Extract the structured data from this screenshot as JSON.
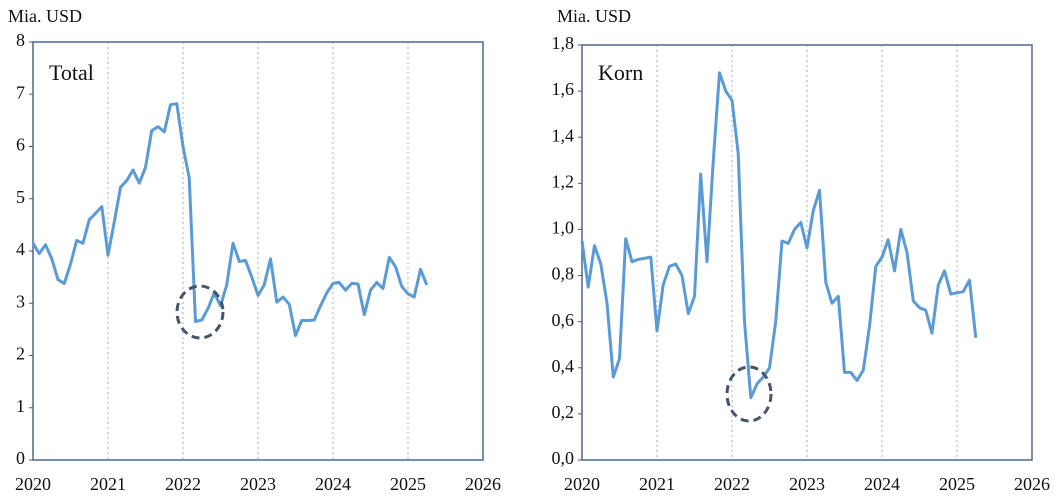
{
  "chart_data": [
    {
      "type": "line",
      "ylabel": "Mia. USD",
      "x": [
        2020,
        2020.083,
        2020.167,
        2020.25,
        2020.333,
        2020.417,
        2020.5,
        2020.583,
        2020.667,
        2020.75,
        2020.833,
        2020.917,
        2021,
        2021.083,
        2021.167,
        2021.25,
        2021.333,
        2021.417,
        2021.5,
        2021.583,
        2021.667,
        2021.75,
        2021.833,
        2021.917,
        2022,
        2022.083,
        2022.167,
        2022.25,
        2022.333,
        2022.417,
        2022.5,
        2022.583,
        2022.667,
        2022.75,
        2022.833,
        2022.917,
        2023,
        2023.083,
        2023.167,
        2023.25,
        2023.333,
        2023.417,
        2023.5,
        2023.583,
        2023.667,
        2023.75,
        2023.833,
        2023.917,
        2024,
        2024.083,
        2024.167,
        2024.25,
        2024.333,
        2024.417,
        2024.5,
        2024.583,
        2024.667,
        2024.75,
        2024.833,
        2024.917,
        2025,
        2025.083,
        2025.167,
        2025.25
      ],
      "series": [
        {
          "name": "Total",
          "color": "#5b9bd5",
          "values": [
            4.15,
            3.95,
            4.12,
            3.85,
            3.45,
            3.38,
            3.75,
            4.2,
            4.15,
            4.6,
            4.72,
            4.85,
            3.92,
            4.55,
            5.22,
            5.35,
            5.55,
            5.3,
            5.6,
            6.3,
            6.38,
            6.28,
            6.8,
            6.82,
            6.0,
            5.4,
            2.65,
            2.68,
            2.9,
            3.2,
            2.95,
            3.35,
            4.15,
            3.8,
            3.82,
            3.5,
            3.15,
            3.35,
            3.85,
            3.02,
            3.12,
            2.98,
            2.38,
            2.67,
            2.67,
            2.68,
            2.95,
            3.2,
            3.38,
            3.4,
            3.25,
            3.38,
            3.37,
            2.78,
            3.25,
            3.4,
            3.28,
            3.88,
            3.7,
            3.32,
            3.18,
            3.12,
            3.65,
            3.35
          ]
        }
      ],
      "xlim": [
        2020,
        2026
      ],
      "xticks": [
        2020,
        2021,
        2022,
        2023,
        2024,
        2025,
        2026
      ],
      "ylim": [
        0,
        8
      ],
      "yticks": [
        0,
        1,
        2,
        3,
        4,
        5,
        6,
        7,
        8
      ],
      "grid": true
    },
    {
      "type": "line",
      "ylabel": "Mia. USD",
      "x": [
        2020,
        2020.083,
        2020.167,
        2020.25,
        2020.333,
        2020.417,
        2020.5,
        2020.583,
        2020.667,
        2020.75,
        2020.833,
        2020.917,
        2021,
        2021.083,
        2021.167,
        2021.25,
        2021.333,
        2021.417,
        2021.5,
        2021.583,
        2021.667,
        2021.75,
        2021.833,
        2021.917,
        2022,
        2022.083,
        2022.167,
        2022.25,
        2022.333,
        2022.417,
        2022.5,
        2022.583,
        2022.667,
        2022.75,
        2022.833,
        2022.917,
        2023,
        2023.083,
        2023.167,
        2023.25,
        2023.333,
        2023.417,
        2023.5,
        2023.583,
        2023.667,
        2023.75,
        2023.833,
        2023.917,
        2024,
        2024.083,
        2024.167,
        2024.25,
        2024.333,
        2024.417,
        2024.5,
        2024.583,
        2024.667,
        2024.75,
        2024.833,
        2024.917,
        2025,
        2025.083,
        2025.167,
        2025.25
      ],
      "series": [
        {
          "name": "Korn",
          "color": "#5b9bd5",
          "values": [
            0.95,
            0.75,
            0.93,
            0.85,
            0.68,
            0.36,
            0.44,
            0.96,
            0.86,
            0.87,
            0.875,
            0.88,
            0.56,
            0.76,
            0.84,
            0.85,
            0.8,
            0.635,
            0.71,
            1.24,
            0.86,
            1.3,
            1.68,
            1.6,
            1.56,
            1.33,
            0.6,
            0.27,
            0.33,
            0.36,
            0.4,
            0.6,
            0.95,
            0.94,
            1.0,
            1.03,
            0.92,
            1.08,
            1.17,
            0.77,
            0.68,
            0.71,
            0.38,
            0.38,
            0.345,
            0.39,
            0.58,
            0.84,
            0.88,
            0.955,
            0.82,
            1.0,
            0.9,
            0.69,
            0.66,
            0.65,
            0.55,
            0.76,
            0.82,
            0.72,
            0.725,
            0.73,
            0.78,
            0.53
          ]
        }
      ],
      "xlim": [
        2020,
        2026
      ],
      "xticks": [
        2020,
        2021,
        2022,
        2023,
        2024,
        2025,
        2026
      ],
      "ylim": [
        0,
        1.8
      ],
      "yticks": [
        {
          "value": 0,
          "label": "0,0"
        },
        {
          "value": 0.2,
          "label": "0,2"
        },
        {
          "value": 0.4,
          "label": "0,4"
        },
        {
          "value": 0.6,
          "label": "0,6"
        },
        {
          "value": 0.8,
          "label": "0,8"
        },
        {
          "value": 1.0,
          "label": "1,0"
        },
        {
          "value": 1.2,
          "label": "1,2"
        },
        {
          "value": 1.4,
          "label": "1,4"
        },
        {
          "value": 1.6,
          "label": "1,6"
        },
        {
          "value": 1.8,
          "label": "1,8"
        }
      ],
      "grid": true
    }
  ]
}
